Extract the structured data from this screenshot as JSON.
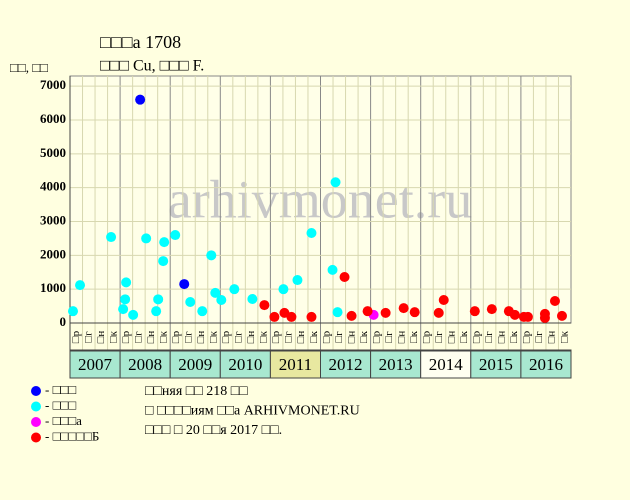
{
  "chart_data": {
    "type": "scatter",
    "title": "□□□а 1708",
    "subtitle": "□□□ Cu, □□□ F.",
    "y_label": "□□, □□",
    "watermark": "arhivmonet.ru",
    "xlim": [
      2007,
      2017
    ],
    "ylim": [
      0,
      7300
    ],
    "yticks": [
      0,
      1000,
      2000,
      3000,
      4000,
      5000,
      6000,
      7000
    ],
    "grid": true,
    "years": [
      "2007",
      "2008",
      "2009",
      "2010",
      "2011",
      "2012",
      "2013",
      "2014",
      "2015",
      "2016"
    ],
    "year_colors": [
      "#a8e8d0",
      "#a8e8d0",
      "#a8e8d0",
      "#a8e8d0",
      "#e8e8a0",
      "#a8e8d0",
      "#a8e8d0",
      "#fffff0",
      "#a8e8d0",
      "#a8e8d0"
    ],
    "quarter_labels": [
      "□р",
      "□г",
      "□н",
      "□к"
    ],
    "series": [
      {
        "name": "- □□□",
        "color": "#0000ff",
        "x": [
          2008.4,
          2009.28
        ],
        "values": [
          6600,
          1150
        ]
      },
      {
        "name": "- □□□",
        "color": "#00ffff",
        "x": [
          2007.06,
          2007.2,
          2007.82,
          2008.06,
          2008.1,
          2008.12,
          2008.26,
          2008.52,
          2008.72,
          2008.76,
          2008.86,
          2008.88,
          2009.1,
          2009.4,
          2009.64,
          2009.82,
          2009.9,
          2010.02,
          2010.28,
          2010.64,
          2011.26,
          2011.54,
          2011.82,
          2012.24,
          2012.3,
          2012.34
        ],
        "values": [
          350,
          1120,
          2540,
          410,
          700,
          1200,
          240,
          2500,
          350,
          700,
          1830,
          2390,
          2600,
          620,
          350,
          2000,
          890,
          680,
          1000,
          710,
          1000,
          1270,
          2660,
          1570,
          4160,
          320
        ]
      },
      {
        "name": "- □□□а",
        "color": "#ff00ff",
        "x": [
          2013.06
        ],
        "values": [
          240
        ]
      },
      {
        "name": "- □□□□□Б",
        "color": "#ff0000",
        "x": [
          2010.88,
          2011.08,
          2011.28,
          2011.42,
          2011.82,
          2012.48,
          2012.62,
          2012.94,
          2013.3,
          2013.66,
          2013.88,
          2014.36,
          2014.46,
          2015.08,
          2015.42,
          2015.76,
          2015.88,
          2016.06,
          2016.14,
          2016.48,
          2016.48,
          2016.68,
          2016.82
        ],
        "values": [
          530,
          180,
          300,
          180,
          180,
          1360,
          210,
          350,
          300,
          440,
          320,
          300,
          680,
          350,
          410,
          350,
          240,
          180,
          180,
          150,
          270,
          650,
          210
        ]
      }
    ],
    "notes": [
      "□□няя □□ 218 □□",
      "□ □□□□иям □□а ARHIVMONET.RU",
      "□□□ □ 20 □□я 2017 □□."
    ]
  }
}
